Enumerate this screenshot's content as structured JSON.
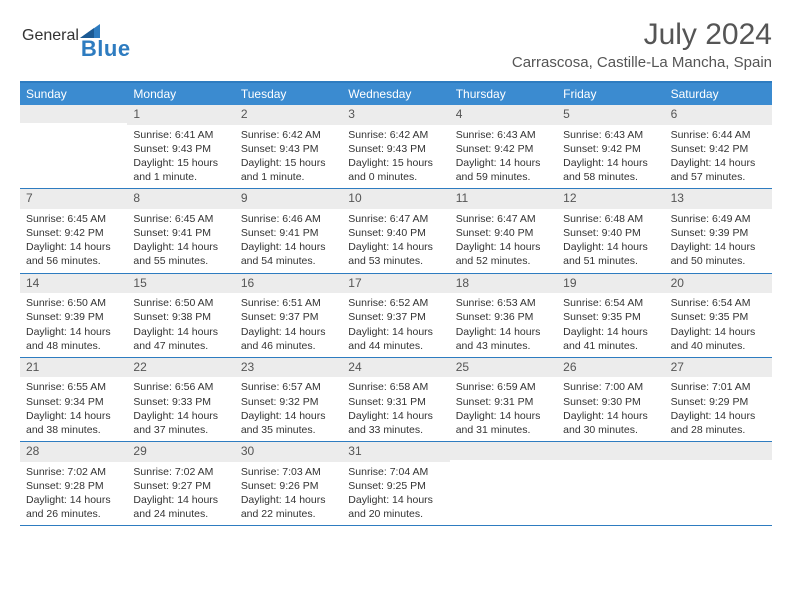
{
  "logo": {
    "general": "General",
    "blue": "Blue"
  },
  "title": "July 2024",
  "location": "Carrascosa, Castille-La Mancha, Spain",
  "colors": {
    "header_bg": "#3b8bd0",
    "rule": "#2e7cc0",
    "daynum_bg": "#ececec",
    "text": "#333333",
    "title_color": "#555555"
  },
  "weekdays": [
    "Sunday",
    "Monday",
    "Tuesday",
    "Wednesday",
    "Thursday",
    "Friday",
    "Saturday"
  ],
  "start_offset": 1,
  "days": [
    {
      "n": 1,
      "sr": "6:41 AM",
      "ss": "9:43 PM",
      "dl": "15 hours and 1 minute."
    },
    {
      "n": 2,
      "sr": "6:42 AM",
      "ss": "9:43 PM",
      "dl": "15 hours and 1 minute."
    },
    {
      "n": 3,
      "sr": "6:42 AM",
      "ss": "9:43 PM",
      "dl": "15 hours and 0 minutes."
    },
    {
      "n": 4,
      "sr": "6:43 AM",
      "ss": "9:42 PM",
      "dl": "14 hours and 59 minutes."
    },
    {
      "n": 5,
      "sr": "6:43 AM",
      "ss": "9:42 PM",
      "dl": "14 hours and 58 minutes."
    },
    {
      "n": 6,
      "sr": "6:44 AM",
      "ss": "9:42 PM",
      "dl": "14 hours and 57 minutes."
    },
    {
      "n": 7,
      "sr": "6:45 AM",
      "ss": "9:42 PM",
      "dl": "14 hours and 56 minutes."
    },
    {
      "n": 8,
      "sr": "6:45 AM",
      "ss": "9:41 PM",
      "dl": "14 hours and 55 minutes."
    },
    {
      "n": 9,
      "sr": "6:46 AM",
      "ss": "9:41 PM",
      "dl": "14 hours and 54 minutes."
    },
    {
      "n": 10,
      "sr": "6:47 AM",
      "ss": "9:40 PM",
      "dl": "14 hours and 53 minutes."
    },
    {
      "n": 11,
      "sr": "6:47 AM",
      "ss": "9:40 PM",
      "dl": "14 hours and 52 minutes."
    },
    {
      "n": 12,
      "sr": "6:48 AM",
      "ss": "9:40 PM",
      "dl": "14 hours and 51 minutes."
    },
    {
      "n": 13,
      "sr": "6:49 AM",
      "ss": "9:39 PM",
      "dl": "14 hours and 50 minutes."
    },
    {
      "n": 14,
      "sr": "6:50 AM",
      "ss": "9:39 PM",
      "dl": "14 hours and 48 minutes."
    },
    {
      "n": 15,
      "sr": "6:50 AM",
      "ss": "9:38 PM",
      "dl": "14 hours and 47 minutes."
    },
    {
      "n": 16,
      "sr": "6:51 AM",
      "ss": "9:37 PM",
      "dl": "14 hours and 46 minutes."
    },
    {
      "n": 17,
      "sr": "6:52 AM",
      "ss": "9:37 PM",
      "dl": "14 hours and 44 minutes."
    },
    {
      "n": 18,
      "sr": "6:53 AM",
      "ss": "9:36 PM",
      "dl": "14 hours and 43 minutes."
    },
    {
      "n": 19,
      "sr": "6:54 AM",
      "ss": "9:35 PM",
      "dl": "14 hours and 41 minutes."
    },
    {
      "n": 20,
      "sr": "6:54 AM",
      "ss": "9:35 PM",
      "dl": "14 hours and 40 minutes."
    },
    {
      "n": 21,
      "sr": "6:55 AM",
      "ss": "9:34 PM",
      "dl": "14 hours and 38 minutes."
    },
    {
      "n": 22,
      "sr": "6:56 AM",
      "ss": "9:33 PM",
      "dl": "14 hours and 37 minutes."
    },
    {
      "n": 23,
      "sr": "6:57 AM",
      "ss": "9:32 PM",
      "dl": "14 hours and 35 minutes."
    },
    {
      "n": 24,
      "sr": "6:58 AM",
      "ss": "9:31 PM",
      "dl": "14 hours and 33 minutes."
    },
    {
      "n": 25,
      "sr": "6:59 AM",
      "ss": "9:31 PM",
      "dl": "14 hours and 31 minutes."
    },
    {
      "n": 26,
      "sr": "7:00 AM",
      "ss": "9:30 PM",
      "dl": "14 hours and 30 minutes."
    },
    {
      "n": 27,
      "sr": "7:01 AM",
      "ss": "9:29 PM",
      "dl": "14 hours and 28 minutes."
    },
    {
      "n": 28,
      "sr": "7:02 AM",
      "ss": "9:28 PM",
      "dl": "14 hours and 26 minutes."
    },
    {
      "n": 29,
      "sr": "7:02 AM",
      "ss": "9:27 PM",
      "dl": "14 hours and 24 minutes."
    },
    {
      "n": 30,
      "sr": "7:03 AM",
      "ss": "9:26 PM",
      "dl": "14 hours and 22 minutes."
    },
    {
      "n": 31,
      "sr": "7:04 AM",
      "ss": "9:25 PM",
      "dl": "14 hours and 20 minutes."
    }
  ],
  "labels": {
    "sunrise": "Sunrise:",
    "sunset": "Sunset:",
    "daylight": "Daylight:"
  }
}
